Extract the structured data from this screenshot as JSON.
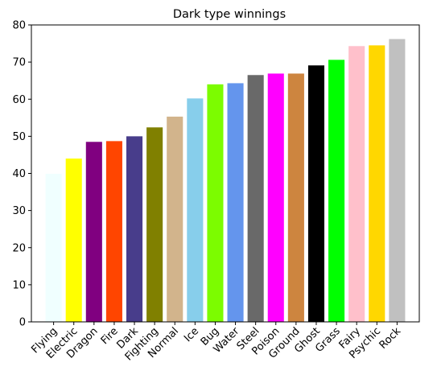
{
  "chart_data": {
    "type": "bar",
    "title": "Dark type winnings",
    "xlabel": "",
    "ylabel": "",
    "ylim": [
      0,
      80
    ],
    "yticks": [
      0,
      10,
      20,
      30,
      40,
      50,
      60,
      70,
      80
    ],
    "grid": false,
    "categories": [
      "Flying",
      "Electric",
      "Dragon",
      "Fire",
      "Dark",
      "Fighting",
      "Normal",
      "Ice",
      "Bug",
      "Water",
      "Steel",
      "Poison",
      "Ground",
      "Ghost",
      "Grass",
      "Fairy",
      "Psychic",
      "Rock"
    ],
    "values": [
      39.9,
      44.0,
      48.5,
      48.7,
      50.0,
      52.4,
      55.3,
      60.2,
      64.0,
      64.3,
      66.5,
      66.9,
      66.9,
      69.1,
      70.6,
      74.3,
      74.5,
      76.2
    ],
    "colors": [
      "#f0ffff",
      "#ffff00",
      "#800080",
      "#ff4500",
      "#483d8b",
      "#808000",
      "#d2b48c",
      "#87ceeb",
      "#7cfc00",
      "#6495ed",
      "#696969",
      "#ff00ff",
      "#cd853f",
      "#000000",
      "#00ff00",
      "#ffc0cb",
      "#ffd700",
      "#c0c0c0"
    ]
  }
}
